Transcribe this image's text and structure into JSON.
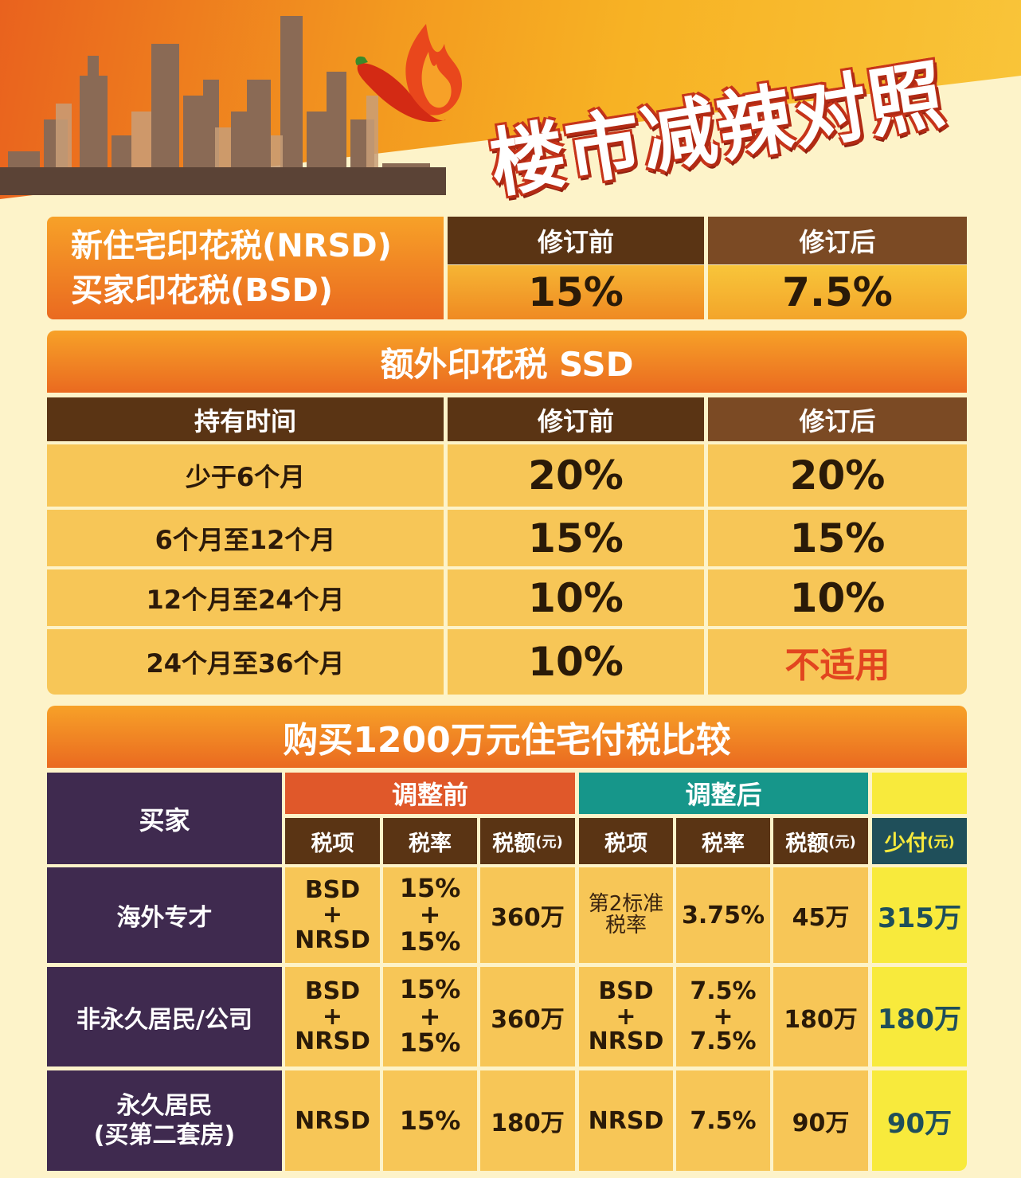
{
  "title": "楼市减辣对照",
  "stamp": {
    "label_line1": "新住宅印花税(NRSD)",
    "label_line2": "买家印花税(BSD)",
    "col_before": "修订前",
    "col_after": "修订后",
    "before_value": "15%",
    "after_value": "7.5%"
  },
  "ssd": {
    "title": "额外印花税 SSD",
    "headers": [
      "持有时间",
      "修订前",
      "修订后"
    ],
    "rows": [
      {
        "period": "少于6个月",
        "before": "20%",
        "after": "20%"
      },
      {
        "period": "6个月至12个月",
        "before": "15%",
        "after": "15%"
      },
      {
        "period": "12个月至24个月",
        "before": "10%",
        "after": "10%"
      },
      {
        "period": "24个月至36个月",
        "before": "10%",
        "after": "不适用"
      }
    ]
  },
  "compare": {
    "title": "购买1200万元住宅付税比较",
    "buyer_header": "买家",
    "group_before": "调整前",
    "group_after": "调整后",
    "sub_headers": {
      "item": "税项",
      "rate": "税率",
      "amount": "税额",
      "amount_unit": "(元)",
      "saving": "少付",
      "saving_unit": "(元)"
    },
    "rows": [
      {
        "buyer": "海外专才",
        "before_item": [
          "BSD",
          "+",
          "NRSD"
        ],
        "before_rate": [
          "15%",
          "+",
          "15%"
        ],
        "before_amount": "360万",
        "after_item": [
          "第2标准",
          "税率"
        ],
        "after_rate": [
          "3.75%"
        ],
        "after_amount": "45万",
        "saving": "315万"
      },
      {
        "buyer": "非永久居民/公司",
        "before_item": [
          "BSD",
          "+",
          "NRSD"
        ],
        "before_rate": [
          "15%",
          "+",
          "15%"
        ],
        "before_amount": "360万",
        "after_item": [
          "BSD",
          "+",
          "NRSD"
        ],
        "after_rate": [
          "7.5%",
          "+",
          "7.5%"
        ],
        "after_amount": "180万",
        "saving": "180万"
      },
      {
        "buyer": "永久居民",
        "buyer_note": "(买第二套房)",
        "before_item": [
          "NRSD"
        ],
        "before_rate": [
          "15%"
        ],
        "before_amount": "180万",
        "after_item": [
          "NRSD"
        ],
        "after_rate": [
          "7.5%"
        ],
        "after_amount": "90万",
        "saving": "90万"
      }
    ]
  },
  "colors": {
    "orange": "#ea6a20",
    "brown": "#5a3414",
    "cream": "#f7c657",
    "purple": "#3f2a4f",
    "red_before": "#e0582a",
    "teal_after": "#16968a",
    "highlight": "#f8ea3c",
    "na_red": "#e2451f"
  }
}
